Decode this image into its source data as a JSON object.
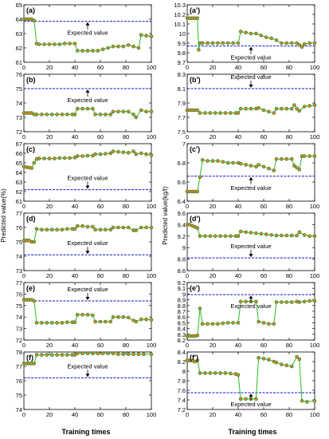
{
  "figure": {
    "left_ylabel": "Predicted value(%)",
    "right_ylabel": "Predicted value(kg/t)",
    "left_xlabel": "Training times",
    "right_xlabel": "Training times",
    "expected_label": "Expected value"
  },
  "colors": {
    "marker_fill": "#e8842a",
    "marker_edge": "#2a8a2a",
    "line": "#22c022",
    "expected": "#1010cc",
    "arrow": "#000000"
  },
  "chart_data": [
    {
      "panel": "(a)",
      "type": "line",
      "ylim": [
        61,
        65
      ],
      "yticks": [
        61,
        62,
        63,
        64,
        65
      ],
      "xlim": [
        0,
        100
      ],
      "xticks": [
        0,
        20,
        40,
        60,
        80,
        100
      ],
      "expected_value": 63.85,
      "label_side": "below",
      "series": [
        {
          "x": [
            0,
            2,
            4,
            6,
            8,
            10,
            12,
            16,
            20,
            24,
            28,
            32,
            36,
            40,
            42,
            46,
            50,
            54,
            58,
            62,
            66,
            70,
            74,
            78,
            82,
            86,
            90,
            92,
            96,
            100
          ],
          "y": [
            64.0,
            64.0,
            64.0,
            64.0,
            63.9,
            62.3,
            62.25,
            62.25,
            62.25,
            62.25,
            62.25,
            62.3,
            62.3,
            62.3,
            61.8,
            61.8,
            61.8,
            61.8,
            61.8,
            61.9,
            62.0,
            62.1,
            62.1,
            62.1,
            62.2,
            62.1,
            62.0,
            62.9,
            62.85,
            62.8
          ]
        }
      ]
    },
    {
      "panel": "(a')",
      "type": "line",
      "ylim": [
        9.7,
        10.3
      ],
      "yticks": [
        9.7,
        9.8,
        9.9,
        10.0,
        10.1,
        10.2,
        10.3
      ],
      "xlim": [
        0,
        100
      ],
      "xticks": [
        0,
        20,
        40,
        60,
        80,
        100
      ],
      "expected_value": 9.87,
      "label_side": "below",
      "series": [
        {
          "x": [
            0,
            2,
            4,
            6,
            8,
            9,
            10,
            12,
            16,
            20,
            24,
            28,
            32,
            36,
            40,
            42,
            46,
            50,
            54,
            58,
            62,
            66,
            70,
            74,
            78,
            82,
            86,
            88,
            90,
            92,
            96,
            100
          ],
          "y": [
            10.16,
            10.16,
            10.16,
            10.16,
            10.16,
            9.83,
            9.9,
            9.9,
            9.9,
            9.9,
            9.9,
            9.9,
            9.9,
            9.9,
            9.9,
            10.02,
            10.01,
            10.0,
            10.0,
            9.98,
            9.96,
            9.95,
            9.93,
            9.9,
            9.9,
            9.9,
            9.9,
            9.88,
            9.86,
            9.89,
            9.9,
            9.9
          ]
        }
      ]
    },
    {
      "panel": "(b)",
      "type": "line",
      "ylim": [
        72,
        76
      ],
      "yticks": [
        72,
        73,
        74,
        75,
        76
      ],
      "xlim": [
        0,
        100
      ],
      "xticks": [
        0,
        20,
        40,
        60,
        80,
        100
      ],
      "expected_value": 75.0,
      "label_side": "below",
      "series": [
        {
          "x": [
            0,
            2,
            4,
            6,
            8,
            10,
            14,
            18,
            22,
            26,
            30,
            34,
            38,
            40,
            42,
            46,
            50,
            54,
            56,
            60,
            64,
            68,
            70,
            74,
            78,
            82,
            86,
            88,
            92,
            96,
            100
          ],
          "y": [
            73.3,
            73.3,
            73.3,
            73.3,
            73.2,
            73.2,
            73.2,
            73.2,
            73.2,
            73.2,
            73.2,
            73.2,
            73.2,
            73.2,
            73.6,
            73.6,
            73.6,
            73.6,
            73.2,
            73.2,
            73.2,
            73.2,
            73.4,
            73.4,
            73.4,
            73.4,
            73.2,
            73.0,
            73.5,
            73.4,
            73.4
          ]
        }
      ]
    },
    {
      "panel": "(b')",
      "type": "line",
      "ylim": [
        7.5,
        8.3
      ],
      "yticks": [
        7.5,
        7.7,
        7.9,
        8.1,
        8.3
      ],
      "xlim": [
        0,
        100
      ],
      "xticks": [
        0,
        20,
        40,
        60,
        80,
        100
      ],
      "expected_value": 8.1,
      "label_side": "above",
      "series": [
        {
          "x": [
            0,
            2,
            4,
            6,
            8,
            10,
            14,
            18,
            22,
            26,
            30,
            34,
            38,
            40,
            42,
            46,
            50,
            54,
            56,
            60,
            64,
            68,
            70,
            74,
            78,
            82,
            84,
            86,
            88,
            92,
            96,
            100
          ],
          "y": [
            7.8,
            7.8,
            7.8,
            7.8,
            7.8,
            7.76,
            7.76,
            7.76,
            7.76,
            7.76,
            7.76,
            7.76,
            7.76,
            7.76,
            7.82,
            7.82,
            7.82,
            7.82,
            7.83,
            7.8,
            7.78,
            7.76,
            7.82,
            7.82,
            7.82,
            7.82,
            7.87,
            7.82,
            7.79,
            7.85,
            7.86,
            7.87
          ]
        }
      ]
    },
    {
      "panel": "(c)",
      "type": "line",
      "ylim": [
        61,
        67
      ],
      "yticks": [
        61,
        62,
        63,
        64,
        65,
        66,
        67
      ],
      "xlim": [
        0,
        100
      ],
      "xticks": [
        0,
        20,
        40,
        60,
        80,
        100
      ],
      "expected_value": 62.2,
      "label_side": "above",
      "series": [
        {
          "x": [
            0,
            2,
            4,
            6,
            8,
            10,
            12,
            16,
            20,
            24,
            28,
            32,
            36,
            40,
            42,
            46,
            50,
            54,
            56,
            60,
            64,
            68,
            70,
            74,
            78,
            82,
            86,
            88,
            92,
            96,
            100
          ],
          "y": [
            64.6,
            64.55,
            64.5,
            64.45,
            65.0,
            65.4,
            65.45,
            65.45,
            65.45,
            65.45,
            65.5,
            65.5,
            65.5,
            65.55,
            65.7,
            65.7,
            65.75,
            65.75,
            65.9,
            65.9,
            65.95,
            66.0,
            66.2,
            66.15,
            66.1,
            66.05,
            66.2,
            65.9,
            66.0,
            65.9,
            65.8
          ]
        }
      ]
    },
    {
      "panel": "(c')",
      "type": "line",
      "ylim": [
        6.4,
        7.0
      ],
      "yticks": [
        6.4,
        6.6,
        6.8,
        7.0
      ],
      "xlim": [
        0,
        100
      ],
      "xticks": [
        0,
        20,
        40,
        60,
        80,
        100
      ],
      "expected_value": 6.66,
      "label_side": "below",
      "series": [
        {
          "x": [
            0,
            2,
            4,
            6,
            8,
            10,
            12,
            16,
            20,
            24,
            28,
            32,
            36,
            40,
            42,
            46,
            50,
            54,
            56,
            60,
            64,
            68,
            70,
            74,
            78,
            82,
            84,
            86,
            88,
            90,
            92,
            96,
            100
          ],
          "y": [
            6.5,
            6.5,
            6.5,
            6.5,
            6.5,
            6.65,
            6.83,
            6.82,
            6.82,
            6.82,
            6.81,
            6.8,
            6.8,
            6.8,
            6.79,
            6.78,
            6.77,
            6.76,
            6.78,
            6.76,
            6.74,
            6.72,
            6.84,
            6.84,
            6.84,
            6.84,
            6.77,
            6.75,
            6.73,
            6.87,
            6.87,
            6.87,
            6.87
          ]
        }
      ]
    },
    {
      "panel": "(d)",
      "type": "line",
      "ylim": [
        73,
        77
      ],
      "yticks": [
        73,
        74,
        75,
        76,
        77
      ],
      "xlim": [
        0,
        100
      ],
      "xticks": [
        0,
        20,
        40,
        60,
        80,
        100
      ],
      "expected_value": 74.1,
      "label_side": "above",
      "series": [
        {
          "x": [
            0,
            2,
            4,
            6,
            8,
            10,
            14,
            18,
            22,
            26,
            30,
            34,
            38,
            40,
            42,
            46,
            50,
            54,
            56,
            60,
            64,
            68,
            70,
            74,
            78,
            82,
            86,
            88,
            92,
            96,
            100
          ],
          "y": [
            75.1,
            75.1,
            75.1,
            75.0,
            75.0,
            75.9,
            75.85,
            75.85,
            75.85,
            75.85,
            75.85,
            75.9,
            75.9,
            75.9,
            76.1,
            76.1,
            76.05,
            76.05,
            75.85,
            75.85,
            75.85,
            75.85,
            76.0,
            76.0,
            76.0,
            76.0,
            75.8,
            75.8,
            76.0,
            76.0,
            76.0
          ]
        }
      ]
    },
    {
      "panel": "(d')",
      "type": "line",
      "ylim": [
        8.6,
        9.6
      ],
      "yticks": [
        8.6,
        8.8,
        9.0,
        9.2,
        9.4,
        9.6
      ],
      "xlim": [
        0,
        100
      ],
      "xticks": [
        0,
        20,
        40,
        60,
        80,
        100
      ],
      "expected_value": 8.82,
      "label_side": "above",
      "series": [
        {
          "x": [
            0,
            2,
            4,
            6,
            8,
            10,
            14,
            18,
            22,
            26,
            30,
            34,
            38,
            40,
            42,
            46,
            50,
            54,
            58,
            62,
            66,
            70,
            74,
            78,
            82,
            86,
            88,
            92,
            96,
            100
          ],
          "y": [
            9.4,
            9.4,
            9.38,
            9.36,
            9.34,
            9.2,
            9.2,
            9.2,
            9.2,
            9.2,
            9.2,
            9.2,
            9.2,
            9.2,
            9.28,
            9.27,
            9.26,
            9.25,
            9.24,
            9.23,
            9.22,
            9.21,
            9.21,
            9.21,
            9.21,
            9.21,
            9.27,
            9.22,
            9.2,
            9.2
          ]
        }
      ]
    },
    {
      "panel": "(e)",
      "type": "line",
      "ylim": [
        72,
        77
      ],
      "yticks": [
        72,
        73,
        74,
        75,
        76,
        77
      ],
      "xlim": [
        0,
        100
      ],
      "xticks": [
        0,
        20,
        40,
        60,
        80,
        100
      ],
      "expected_value": 75.4,
      "label_side": "above",
      "series": [
        {
          "x": [
            0,
            2,
            4,
            6,
            8,
            10,
            14,
            18,
            22,
            26,
            30,
            34,
            38,
            40,
            42,
            46,
            50,
            54,
            56,
            60,
            64,
            68,
            70,
            74,
            78,
            82,
            86,
            88,
            92,
            96,
            100
          ],
          "y": [
            75.5,
            75.5,
            75.5,
            75.5,
            75.4,
            73.5,
            73.5,
            73.5,
            73.5,
            73.5,
            73.5,
            73.55,
            73.55,
            73.55,
            74.2,
            74.2,
            74.2,
            74.15,
            73.6,
            73.6,
            73.6,
            73.6,
            74.0,
            74.0,
            74.0,
            73.95,
            73.7,
            73.6,
            73.8,
            73.8,
            73.75
          ]
        }
      ]
    },
    {
      "panel": "(e')",
      "type": "line",
      "ylim": [
        8.2,
        9.2
      ],
      "yticks": [
        8.2,
        8.3,
        8.4,
        8.5,
        8.6,
        8.7,
        8.8,
        8.9,
        9.0,
        9.1,
        9.2
      ],
      "xlim": [
        0,
        100
      ],
      "xticks": [
        0,
        20,
        40,
        60,
        80,
        100
      ],
      "expected_value": 8.99,
      "label_side": "below",
      "series": [
        {
          "x": [
            0,
            2,
            4,
            6,
            8,
            10,
            12,
            16,
            20,
            24,
            28,
            32,
            36,
            40,
            42,
            46,
            50,
            54,
            56,
            60,
            64,
            68,
            70,
            74,
            78,
            82,
            86,
            88,
            92,
            96,
            100
          ],
          "y": [
            8.27,
            8.27,
            8.27,
            8.27,
            8.28,
            8.75,
            8.48,
            8.48,
            8.48,
            8.48,
            8.49,
            8.5,
            8.5,
            8.5,
            8.87,
            8.87,
            8.87,
            8.87,
            8.52,
            8.5,
            8.48,
            8.48,
            8.86,
            8.86,
            8.86,
            8.86,
            8.87,
            8.86,
            8.87,
            8.88,
            8.88
          ]
        }
      ]
    },
    {
      "panel": "(f)",
      "type": "line",
      "ylim": [
        74,
        78
      ],
      "yticks": [
        74,
        75,
        76,
        77,
        78
      ],
      "xlim": [
        0,
        100
      ],
      "xticks": [
        0,
        20,
        40,
        60,
        80,
        100
      ],
      "expected_value": 76.2,
      "label_side": "above",
      "series": [
        {
          "x": [
            0,
            2,
            4,
            6,
            8,
            10,
            14,
            18,
            22,
            26,
            30,
            34,
            38,
            40,
            42,
            46,
            50,
            54,
            58,
            62,
            66,
            70,
            74,
            78,
            82,
            86,
            90,
            94,
            100
          ],
          "y": [
            77.2,
            77.2,
            77.2,
            77.2,
            77.2,
            77.8,
            77.8,
            77.8,
            77.8,
            77.8,
            77.8,
            77.8,
            77.8,
            77.8,
            77.9,
            77.9,
            77.9,
            77.9,
            77.9,
            77.9,
            77.9,
            77.9,
            77.85,
            77.85,
            77.85,
            77.85,
            77.85,
            77.85,
            77.85
          ]
        }
      ]
    },
    {
      "panel": "(f')",
      "type": "line",
      "ylim": [
        7.2,
        8.4
      ],
      "yticks": [
        7.2,
        7.4,
        7.6,
        7.8,
        8.0,
        8.2,
        8.4
      ],
      "xlim": [
        0,
        100
      ],
      "xticks": [
        0,
        20,
        40,
        60,
        80,
        100
      ],
      "expected_value": 7.55,
      "label_side": "below",
      "series": [
        {
          "x": [
            0,
            2,
            4,
            6,
            8,
            10,
            14,
            18,
            22,
            26,
            30,
            34,
            38,
            40,
            42,
            46,
            50,
            54,
            56,
            60,
            64,
            68,
            70,
            74,
            78,
            82,
            86,
            88,
            90,
            94,
            100
          ],
          "y": [
            8.22,
            8.22,
            8.22,
            8.2,
            8.22,
            7.96,
            7.96,
            7.96,
            7.96,
            7.96,
            7.96,
            7.95,
            7.94,
            7.92,
            7.42,
            7.42,
            7.42,
            7.42,
            8.28,
            8.26,
            8.24,
            8.2,
            8.18,
            8.14,
            8.12,
            8.1,
            8.3,
            8.25,
            7.38,
            7.36,
            7.38
          ]
        }
      ]
    }
  ]
}
